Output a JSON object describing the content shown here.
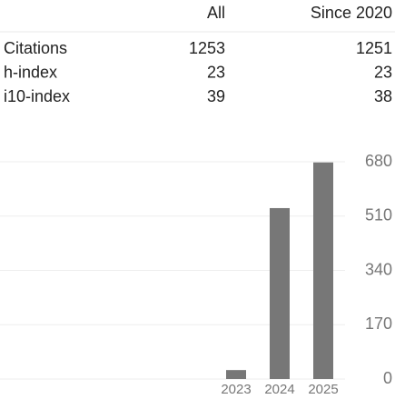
{
  "table": {
    "columns": [
      "All",
      "Since 2020"
    ],
    "rows": [
      [
        "Citations",
        1253,
        1251
      ],
      [
        "h-index",
        23,
        23
      ],
      [
        "i10-index",
        39,
        38
      ]
    ]
  },
  "chart_data": {
    "type": "bar",
    "categories": [
      "2023",
      "2024",
      "2025"
    ],
    "values": [
      28,
      535,
      678
    ],
    "color": "#777777",
    "ylim": [
      0,
      680
    ],
    "yticks": [
      0,
      170,
      340,
      510,
      680
    ],
    "grid": true
  }
}
